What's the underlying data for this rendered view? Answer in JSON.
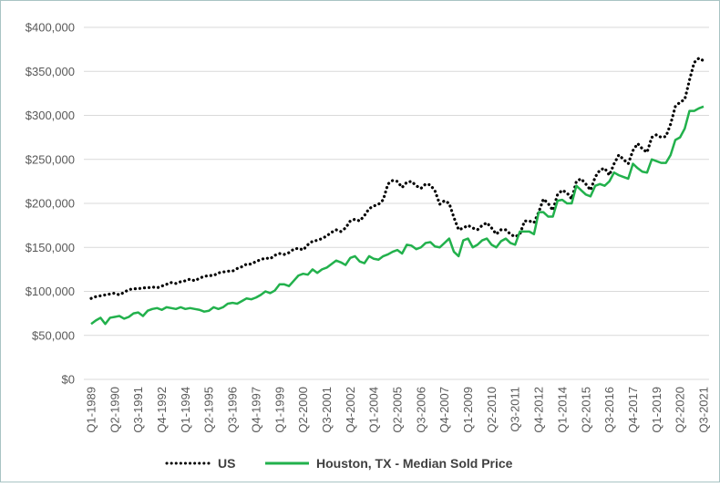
{
  "chart_data": {
    "type": "line",
    "categories": [
      "Q1-1989",
      null,
      null,
      null,
      null,
      "Q2-1990",
      null,
      null,
      null,
      null,
      "Q3-1991",
      null,
      null,
      null,
      null,
      "Q4-1992",
      null,
      null,
      null,
      null,
      "Q1-1994",
      null,
      null,
      null,
      null,
      "Q2-1995",
      null,
      null,
      null,
      null,
      "Q3-1996",
      null,
      null,
      null,
      null,
      "Q4-1997",
      null,
      null,
      null,
      null,
      "Q1-1999",
      null,
      null,
      null,
      null,
      "Q2-2000",
      null,
      null,
      null,
      null,
      "Q3-2001",
      null,
      null,
      null,
      null,
      "Q4-2002",
      null,
      null,
      null,
      null,
      "Q1-2004",
      null,
      null,
      null,
      null,
      "Q2-2005",
      null,
      null,
      null,
      null,
      "Q3-2006",
      null,
      null,
      null,
      null,
      "Q4-2007",
      null,
      null,
      null,
      null,
      "Q1-2009",
      null,
      null,
      null,
      null,
      "Q2-2010",
      null,
      null,
      null,
      null,
      "Q3-2011",
      null,
      null,
      null,
      null,
      "Q4-2012",
      null,
      null,
      null,
      null,
      "Q1-2014",
      null,
      null,
      null,
      null,
      "Q2-2015",
      null,
      null,
      null,
      null,
      "Q3-2016",
      null,
      null,
      null,
      null,
      "Q4-2017",
      null,
      null,
      null,
      null,
      "Q1-2019",
      null,
      null,
      null,
      null,
      "Q2-2020",
      null,
      null,
      null,
      null,
      "Q3-2021"
    ],
    "series": [
      {
        "name": "US",
        "color": "#000000",
        "style": "dotted",
        "values": [
          92000,
          94000,
          95000,
          96000,
          97000,
          98000,
          96000,
          99000,
          102000,
          103000,
          103000,
          104000,
          104000,
          105000,
          104000,
          106000,
          108000,
          110000,
          109000,
          111000,
          112000,
          114000,
          112000,
          115000,
          117000,
          118000,
          118000,
          121000,
          122000,
          123000,
          123000,
          126000,
          128000,
          131000,
          131000,
          134000,
          136000,
          138000,
          137000,
          141000,
          143000,
          142000,
          144000,
          148000,
          149000,
          147000,
          153000,
          157000,
          158000,
          160000,
          163000,
          167000,
          170000,
          168000,
          172000,
          180000,
          182000,
          180000,
          186000,
          194000,
          197000,
          199000,
          204000,
          222000,
          226000,
          225000,
          218000,
          224000,
          225000,
          220000,
          217000,
          222000,
          221000,
          214000,
          199000,
          203000,
          200000,
          184000,
          170000,
          172000,
          175000,
          172000,
          170000,
          175000,
          178000,
          172000,
          165000,
          170000,
          170000,
          165000,
          162000,
          165000,
          180000,
          180000,
          178000,
          190000,
          205000,
          200000,
          192000,
          210000,
          215000,
          212000,
          205000,
          225000,
          228000,
          222000,
          215000,
          230000,
          238000,
          240000,
          232000,
          245000,
          255000,
          250000,
          245000,
          260000,
          268000,
          262000,
          258000,
          275000,
          278000,
          275000,
          276000,
          290000,
          310000,
          315000,
          318000,
          340000,
          360000,
          365000,
          362000
        ]
      },
      {
        "name": "Houston, TX - Median Sold Price",
        "color": "#22b14c",
        "style": "solid",
        "values": [
          63000,
          67000,
          70000,
          63000,
          70000,
          71000,
          72000,
          69000,
          71000,
          75000,
          76000,
          72000,
          78000,
          80000,
          81000,
          79000,
          82000,
          81000,
          80000,
          82000,
          80000,
          81000,
          80000,
          79000,
          77000,
          78000,
          82000,
          80000,
          82000,
          86000,
          87000,
          86000,
          89000,
          92000,
          91000,
          93000,
          96000,
          100000,
          98000,
          101000,
          108000,
          108000,
          106000,
          112000,
          118000,
          120000,
          119000,
          125000,
          121000,
          125000,
          127000,
          131000,
          135000,
          133000,
          130000,
          138000,
          140000,
          134000,
          132000,
          140000,
          137000,
          136000,
          140000,
          142000,
          145000,
          147000,
          143000,
          153000,
          152000,
          148000,
          150000,
          155000,
          156000,
          151000,
          150000,
          155000,
          160000,
          145000,
          140000,
          158000,
          160000,
          150000,
          153000,
          158000,
          160000,
          153000,
          150000,
          157000,
          160000,
          155000,
          153000,
          168000,
          168000,
          168000,
          165000,
          190000,
          190000,
          185000,
          185000,
          203000,
          204000,
          200000,
          200000,
          220000,
          215000,
          210000,
          208000,
          220000,
          222000,
          220000,
          225000,
          235000,
          232000,
          230000,
          228000,
          245000,
          240000,
          236000,
          235000,
          250000,
          248000,
          246000,
          246000,
          255000,
          272000,
          275000,
          285000,
          305000,
          305000,
          308000,
          310000
        ]
      }
    ],
    "ylim": [
      0,
      400000
    ],
    "yticks": [
      {
        "value": 0,
        "label": "$0"
      },
      {
        "value": 50000,
        "label": "$50,000"
      },
      {
        "value": 100000,
        "label": "$100,000"
      },
      {
        "value": 150000,
        "label": "$150,000"
      },
      {
        "value": 200000,
        "label": "$200,000"
      },
      {
        "value": 250000,
        "label": "$250,000"
      },
      {
        "value": 300000,
        "label": "$300,000"
      },
      {
        "value": 350000,
        "label": "$350,000"
      },
      {
        "value": 400000,
        "label": "$400,000"
      }
    ],
    "grid": true,
    "legend": "bottom"
  }
}
